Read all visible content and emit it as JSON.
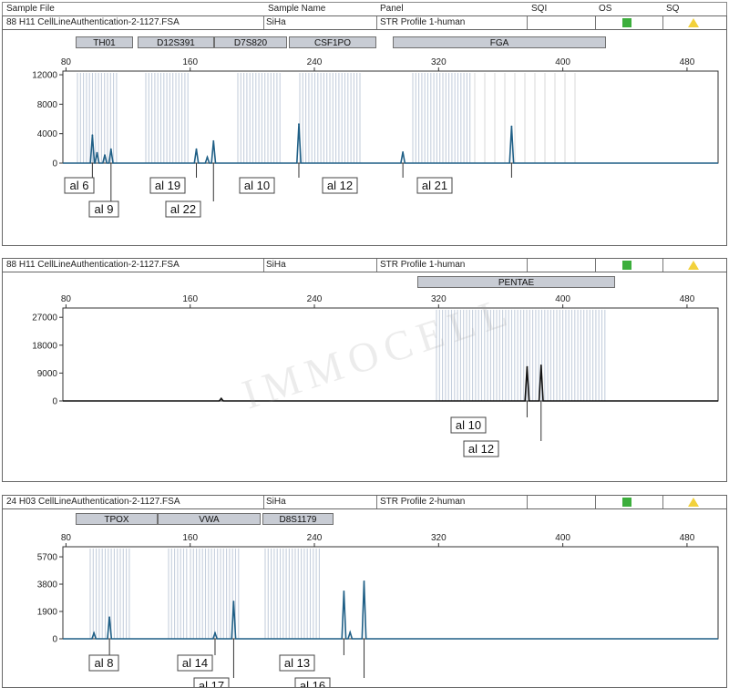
{
  "header": {
    "sample_file": "Sample File",
    "sample_name": "Sample Name",
    "panel": "Panel",
    "sqi": "SQI",
    "os": "OS",
    "sq": "SQ"
  },
  "status_colors": {
    "os": "#3cae3c",
    "sq": "#f2d13b"
  },
  "watermark": "IMMOCELL",
  "panels": [
    {
      "file": "88  H11  CellLineAuthentication-2-1127.FSA",
      "sample": "SiHa",
      "profile": "STR Profile 1-human",
      "markers": [
        "TH01",
        "D12S391",
        "D7S820",
        "CSF1PO",
        "FGA"
      ]
    },
    {
      "file": "88  H11  CellLineAuthentication-2-1127.FSA",
      "sample": "SiHa",
      "profile": "STR Profile 1-human",
      "markers": [
        "PENTAE"
      ]
    },
    {
      "file": "24  H03  CellLineAuthentication-2-1127.FSA",
      "sample": "SiHa",
      "profile": "STR Profile 2-human",
      "markers": [
        "TPOX",
        "VWA",
        "D8S1179"
      ]
    }
  ],
  "chart_data": [
    {
      "type": "line",
      "title": "",
      "xlabel": "",
      "ylabel": "",
      "x_ticks": [
        80,
        160,
        240,
        320,
        400,
        480
      ],
      "y_ticks": [
        0,
        4000,
        8000,
        12000
      ],
      "xlim": [
        78,
        500
      ],
      "ylim": [
        0,
        12500
      ],
      "peaks": [
        {
          "x": 97,
          "y": 3800
        },
        {
          "x": 100,
          "y": 1400
        },
        {
          "x": 105,
          "y": 1100
        },
        {
          "x": 109,
          "y": 1900
        },
        {
          "x": 164,
          "y": 1900
        },
        {
          "x": 171,
          "y": 800
        },
        {
          "x": 175,
          "y": 3000
        },
        {
          "x": 230,
          "y": 5300
        },
        {
          "x": 297,
          "y": 1500
        },
        {
          "x": 367,
          "y": 5000
        }
      ],
      "allele_labels": [
        "al 6",
        "al 9",
        "al 19",
        "al 22",
        "al 10",
        "al 12",
        "al 21"
      ]
    },
    {
      "type": "line",
      "title": "",
      "xlabel": "",
      "ylabel": "",
      "x_ticks": [
        80,
        160,
        240,
        320,
        400,
        480
      ],
      "y_ticks": [
        0,
        9000,
        18000,
        27000
      ],
      "xlim": [
        78,
        500
      ],
      "ylim": [
        0,
        30000
      ],
      "peaks": [
        {
          "x": 180,
          "y": 800
        },
        {
          "x": 377,
          "y": 11000
        },
        {
          "x": 386,
          "y": 11500
        }
      ],
      "allele_labels": [
        "al 10",
        "al 12"
      ]
    },
    {
      "type": "line",
      "title": "",
      "xlabel": "",
      "ylabel": "",
      "x_ticks": [
        80,
        160,
        240,
        320,
        400,
        480
      ],
      "y_ticks": [
        0,
        1900,
        3800,
        5700
      ],
      "xlim": [
        78,
        500
      ],
      "ylim": [
        0,
        6400
      ],
      "peaks": [
        {
          "x": 98,
          "y": 400
        },
        {
          "x": 108,
          "y": 1500
        },
        {
          "x": 176,
          "y": 400
        },
        {
          "x": 188,
          "y": 2600
        },
        {
          "x": 259,
          "y": 3300
        },
        {
          "x": 263,
          "y": 450
        },
        {
          "x": 272,
          "y": 4000
        }
      ],
      "allele_labels": [
        "al 8",
        "al 14",
        "al 17",
        "al 13",
        "al 16"
      ]
    }
  ]
}
